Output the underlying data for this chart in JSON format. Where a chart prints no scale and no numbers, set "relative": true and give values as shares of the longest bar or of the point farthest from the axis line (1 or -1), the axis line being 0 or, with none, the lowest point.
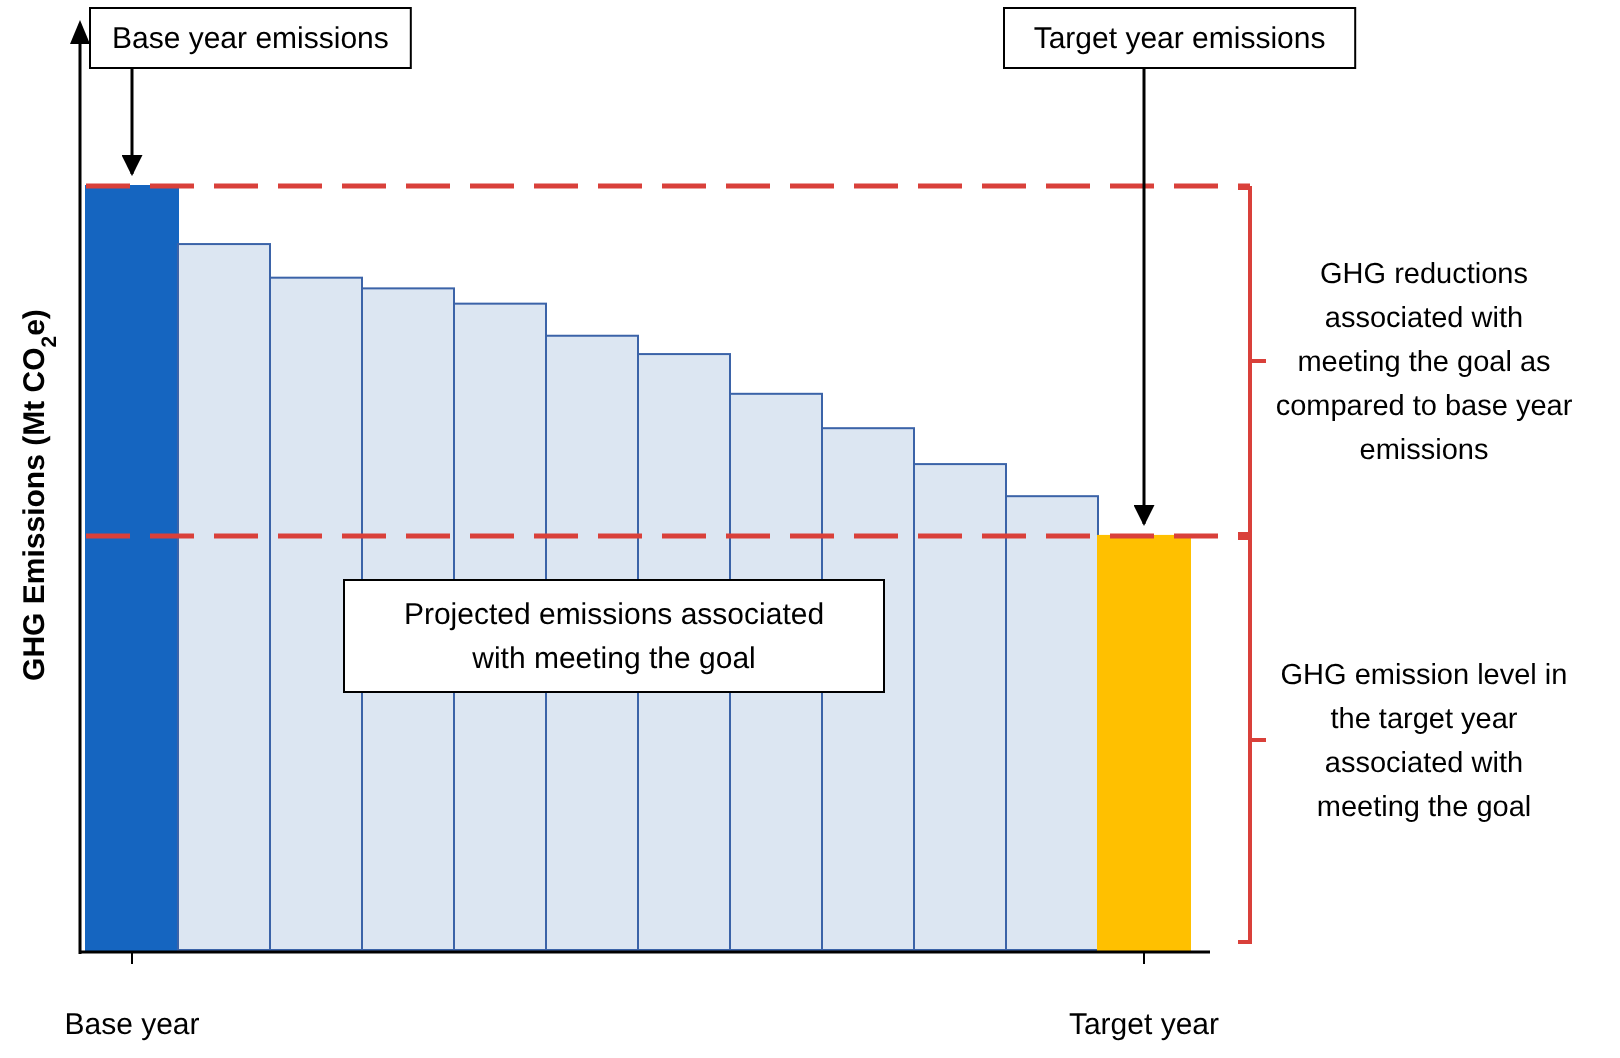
{
  "chart_data": {
    "type": "bar",
    "relative": true,
    "ylabel": "GHG Emissions (Mt CO$_{2}$e)",
    "categories": [
      "Base year",
      null,
      null,
      null,
      null,
      null,
      null,
      null,
      null,
      null,
      null,
      "Target year"
    ],
    "values": [
      1,
      0.924,
      0.88,
      0.866,
      0.846,
      0.804,
      0.78,
      0.728,
      0.683,
      0.636,
      0.594,
      0.542
    ],
    "colors": [
      "#1565c0",
      "#dce6f2",
      "#dce6f2",
      "#dce6f2",
      "#dce6f2",
      "#dce6f2",
      "#dce6f2",
      "#dce6f2",
      "#dce6f2",
      "#dce6f2",
      "#dce6f2",
      "#ffc000"
    ],
    "ref_lines": [
      {
        "axis": "y",
        "value": 1,
        "color": "#d9403a",
        "line_style": "dashed"
      },
      {
        "axis": "y",
        "value": 0.542,
        "color": "#d9403a",
        "line_style": "dashed"
      }
    ],
    "annotations": [
      {
        "text": "Base year emissions",
        "x": "Base year",
        "y": 1
      },
      {
        "text": "Target year emissions",
        "x": "Target year",
        "y": 0.542
      },
      "Projected emissions associated with meeting the goal",
      "GHG reductions associated with meeting the goal as compared to base year emissions",
      "GHG emission level in the target year associated with meeting the goal"
    ]
  }
}
